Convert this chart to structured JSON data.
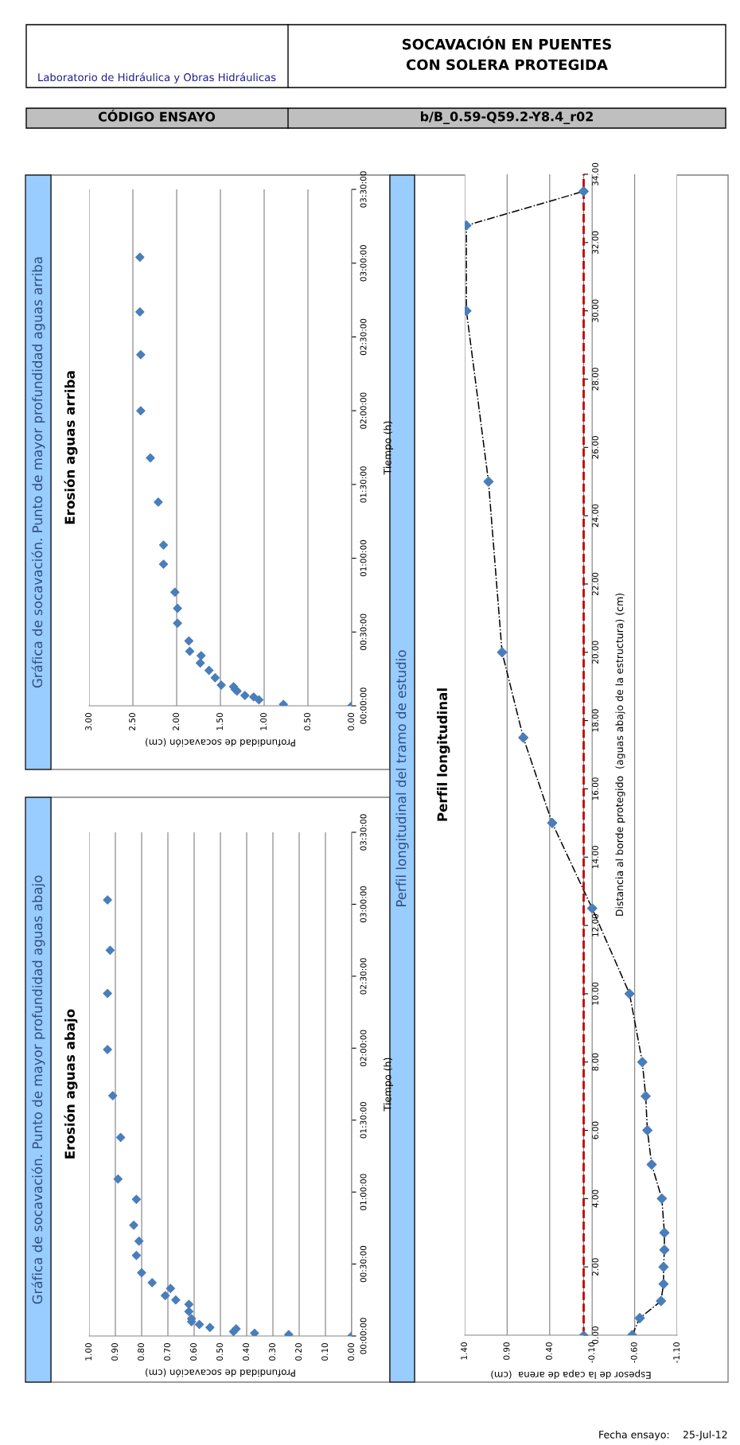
{
  "chart_data": [
    {
      "type": "other",
      "title": "SOCAVACIÓN EN PUENTES\nCON SOLERA PROTEGIDA",
      "annotations": [
        "Laboratorio de Hidráulica y Obras Hidráulicas",
        "CÓDIGO ENSAYO",
        "b/B_0.59-Q59.2-Y8.4_r02",
        "Fecha ensayo:",
        "25-Jul-12"
      ]
    },
    {
      "type": "scatter",
      "subtitle": "Gráfica de socavación. Punto de mayor profundidad aguas arriba",
      "title": "Erosión aguas arriba",
      "xlabel": "Profundidad de socavación (cm)",
      "ylabel": "Tiempo (h)",
      "orientation": "horizontal",
      "marker": "diamond",
      "color": "#4a7ebb",
      "grid": "x",
      "x": [
        0,
        0.01,
        0.04,
        0.06,
        0.07,
        0.1,
        0.11,
        0.13,
        0.14,
        0.19,
        0.24,
        0.29,
        0.34,
        0.37,
        0.44,
        0.56,
        0.66,
        0.77,
        0.96,
        1.09,
        1.38,
        1.68,
        2.0,
        2.38,
        2.67,
        3.04
      ],
      "values": [
        0,
        0.78,
        1.06,
        1.12,
        1.22,
        1.31,
        1.33,
        1.35,
        1.49,
        1.56,
        1.63,
        1.73,
        1.72,
        1.85,
        1.86,
        1.99,
        1.99,
        2.02,
        2.15,
        2.15,
        2.21,
        2.3,
        2.41,
        2.41,
        2.42,
        2.42
      ],
      "xlim": [
        3,
        0
      ],
      "xticks": [
        {
          "value": 3,
          "label": "3.00"
        },
        {
          "value": 2.5,
          "label": "2.50"
        },
        {
          "value": 2,
          "label": "2.00"
        },
        {
          "value": 1.5,
          "label": "1.50"
        },
        {
          "value": 1,
          "label": "1.00"
        },
        {
          "value": 0.5,
          "label": "0.50"
        },
        {
          "value": 0,
          "label": "0.00"
        }
      ],
      "ylim": [
        0,
        3.5
      ],
      "yticks": [
        {
          "value": 0,
          "label": "00:00:00"
        },
        {
          "value": 0.5,
          "label": "00:30:00"
        },
        {
          "value": 1,
          "label": "01:00:00"
        },
        {
          "value": 1.5,
          "label": "01:30:00"
        },
        {
          "value": 2,
          "label": "02:00:00"
        },
        {
          "value": 2.5,
          "label": "02:30:00"
        },
        {
          "value": 3,
          "label": "03:00:00"
        },
        {
          "value": 3.5,
          "label": "03:30:00"
        }
      ]
    },
    {
      "type": "scatter",
      "subtitle": "Gráfica de socavación. Punto de mayor profundidad aguas abajo",
      "title": "Erosión aguas abajo",
      "xlabel": "Profundidad de socavación (cm)",
      "ylabel": "Tiempo (h)",
      "orientation": "horizontal",
      "marker": "diamond",
      "color": "#4a7ebb",
      "grid": "x",
      "x": [
        0,
        0.01,
        0.02,
        0.03,
        0.05,
        0.06,
        0.08,
        0.1,
        0.12,
        0.17,
        0.22,
        0.25,
        0.28,
        0.33,
        0.37,
        0.44,
        0.56,
        0.66,
        0.77,
        0.95,
        1.09,
        1.38,
        1.67,
        1.99,
        2.38,
        2.68,
        3.03
      ],
      "values": [
        0,
        0.24,
        0.37,
        0.45,
        0.44,
        0.54,
        0.58,
        0.61,
        0.61,
        0.62,
        0.62,
        0.67,
        0.71,
        0.69,
        0.76,
        0.8,
        0.82,
        0.81,
        0.83,
        0.82,
        0.89,
        0.88,
        0.91,
        0.93,
        0.93,
        0.92,
        0.93
      ],
      "xlim": [
        1,
        0
      ],
      "xticks": [
        {
          "value": 1,
          "label": "1.00"
        },
        {
          "value": 0.9,
          "label": "0.90"
        },
        {
          "value": 0.8,
          "label": "0.80"
        },
        {
          "value": 0.7,
          "label": "0.70"
        },
        {
          "value": 0.6,
          "label": "0.60"
        },
        {
          "value": 0.5,
          "label": "0.50"
        },
        {
          "value": 0.4,
          "label": "0.40"
        },
        {
          "value": 0.3,
          "label": "0.30"
        },
        {
          "value": 0.2,
          "label": "0.20"
        },
        {
          "value": 0.1,
          "label": "0.10"
        },
        {
          "value": 0,
          "label": "0.00"
        }
      ],
      "ylim": [
        0,
        3.5
      ],
      "yticks": [
        {
          "value": 0,
          "label": "00:00:00"
        },
        {
          "value": 0.5,
          "label": "00:30:00"
        },
        {
          "value": 1,
          "label": "01:00:00"
        },
        {
          "value": 1.5,
          "label": "01:30:00"
        },
        {
          "value": 2,
          "label": "02:00:00"
        },
        {
          "value": 2.5,
          "label": "02:30:00"
        },
        {
          "value": 3,
          "label": "03:00:00"
        },
        {
          "value": 3.5,
          "label": "03:30:00"
        }
      ]
    },
    {
      "type": "line",
      "subtitle": "Perfil longitudinal del tramo de estudio",
      "title": "Perfil longitudinal",
      "xlabel": "Espesor de la capa de arena  (cm)",
      "ylabel": "Distancia al borde protegido  (aguas abajo de la estructura) (cm)",
      "orientation": "horizontal",
      "marker": "diamond",
      "line_style": "dashdot",
      "grid": "x",
      "series": [
        {
          "color": "#4a7ebb",
          "x": [
            0,
            0.5,
            1,
            1.5,
            2,
            2.5,
            3,
            4,
            5,
            6,
            7,
            8,
            10,
            12.5,
            15,
            17.5,
            20,
            25,
            30,
            32.5,
            33.5
          ],
          "values": [
            -0.57,
            -0.66,
            -0.91,
            -0.94,
            -0.94,
            -0.95,
            -0.95,
            -0.92,
            -0.8,
            -0.75,
            -0.73,
            -0.69,
            -0.54,
            -0.1,
            0.37,
            0.71,
            0.96,
            1.12,
            1.38,
            1.38,
            0
          ]
        },
        {
          "type": "scatter",
          "color": "#4a7ebb",
          "x": [
            0
          ],
          "values": [
            0
          ]
        }
      ],
      "ref_lines": [
        {
          "axis": "x",
          "value": 0,
          "color": "#c00000",
          "line_style": "dashed"
        }
      ],
      "xlim": [
        1.4,
        -1.1
      ],
      "xticks": [
        {
          "value": 1.4,
          "label": "1.40"
        },
        {
          "value": 0.9,
          "label": "0.90"
        },
        {
          "value": 0.4,
          "label": "0.40"
        },
        {
          "value": -0.1,
          "label": "-0.10"
        },
        {
          "value": -0.6,
          "label": "-0.60"
        },
        {
          "value": -1.1,
          "label": "-1.10"
        }
      ],
      "ylim": [
        0,
        34
      ],
      "yticks": [
        {
          "value": 0,
          "label": "0.00"
        },
        {
          "value": 2,
          "label": "2.00"
        },
        {
          "value": 4,
          "label": "4.00"
        },
        {
          "value": 6,
          "label": "6.00"
        },
        {
          "value": 8,
          "label": "8.00"
        },
        {
          "value": 10,
          "label": "10.00"
        },
        {
          "value": 12,
          "label": "12.00"
        },
        {
          "value": 14,
          "label": "14.00"
        },
        {
          "value": 16,
          "label": "16.00"
        },
        {
          "value": 18,
          "label": "18.00"
        },
        {
          "value": 20,
          "label": "20.00"
        },
        {
          "value": 22,
          "label": "22.00"
        },
        {
          "value": 24,
          "label": "24.00"
        },
        {
          "value": 26,
          "label": "26.00"
        },
        {
          "value": 28,
          "label": "28.00"
        },
        {
          "value": 30,
          "label": "30.00"
        },
        {
          "value": 32,
          "label": "32.00"
        },
        {
          "value": 34,
          "label": "34.00"
        }
      ]
    }
  ]
}
